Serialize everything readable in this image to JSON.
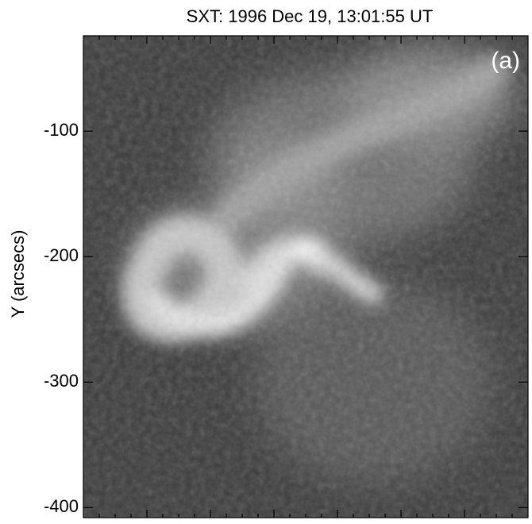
{
  "chart_data": {
    "type": "image",
    "title": "SXT: 1996 Dec 19,  13:01:55 UT",
    "ylabel": "Y (arcsecs)",
    "annotation": "(a)",
    "ylim": [
      -408,
      -24
    ],
    "yticks": [
      -400,
      -300,
      -200,
      -100
    ]
  }
}
